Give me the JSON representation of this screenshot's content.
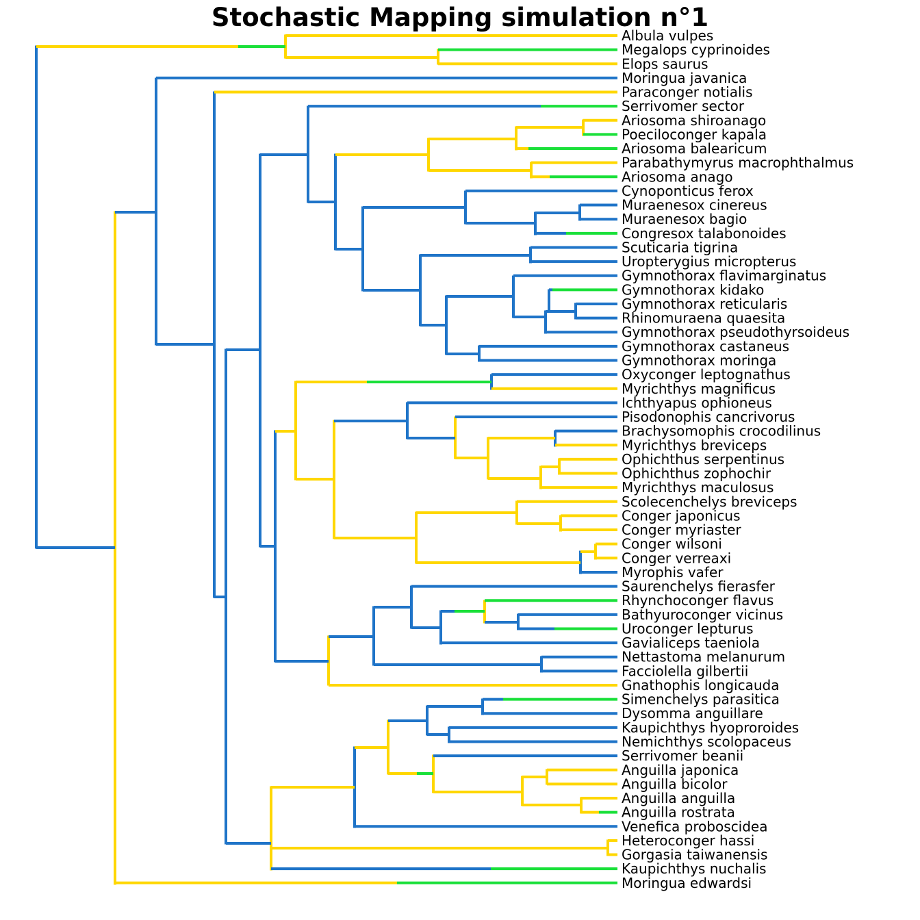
{
  "title": "Stochastic Mapping simulation n°1",
  "colors": {
    "blue": "#1f74c8",
    "yellow": "#ffd700",
    "green": "#1ae03a"
  },
  "tips": [
    "Albula vulpes",
    "Megalops cyprinoides",
    "Elops saurus",
    "Moringua javanica",
    "Paraconger notialis",
    "Serrivomer sector",
    "Ariosoma shiroanago",
    "Poeciloconger kapala",
    "Ariosoma balearicum",
    "Parabathymyrus macrophthalmus",
    "Ariosoma anago",
    "Cynoponticus ferox",
    "Muraenesox cinereus",
    "Muraenesox bagio",
    "Congresox talabonoides",
    "Scuticaria tigrina",
    "Uropterygius micropterus",
    "Gymnothorax flavimarginatus",
    "Gymnothorax kidako",
    "Gymnothorax reticularis",
    "Rhinomuraena quaesita",
    "Gymnothorax pseudothyrsoideus",
    "Gymnothorax castaneus",
    "Gymnothorax moringa",
    "Oxyconger leptognathus",
    "Myrichthys magnificus",
    "Ichthyapus ophioneus",
    "Pisodonophis cancrivorus",
    "Brachysomophis crocodilinus",
    "Myrichthys breviceps",
    "Ophichthus serpentinus",
    "Ophichthus zophochir",
    "Myrichthys maculosus",
    "Scolecenchelys breviceps",
    "Conger japonicus",
    "Conger myriaster",
    "Conger wilsoni",
    "Conger verreaxi",
    "Myrophis vafer",
    "Saurenchelys fierasfer",
    "Rhynchoconger flavus",
    "Bathyuroconger vicinus",
    "Uroconger lepturus",
    "Gavialiceps taeniola",
    "Nettastoma melanurum",
    "Facciolella gilbertii",
    "Gnathophis longicauda",
    "Simenchelys parasitica",
    "Dysomma anguillare",
    "Kaupichthys hyoproroides",
    "Nemichthys scolopaceus",
    "Serrivomer beanii",
    "Anguilla japonica",
    "Anguilla bicolor",
    "Anguilla anguilla",
    "Anguilla rostrata",
    "Venefica proboscidea",
    "Heteroconger hassi",
    "Gorgasia taiwanensis",
    "Kaupichthys nuchalis",
    "Moringua edwardsi"
  ]
}
